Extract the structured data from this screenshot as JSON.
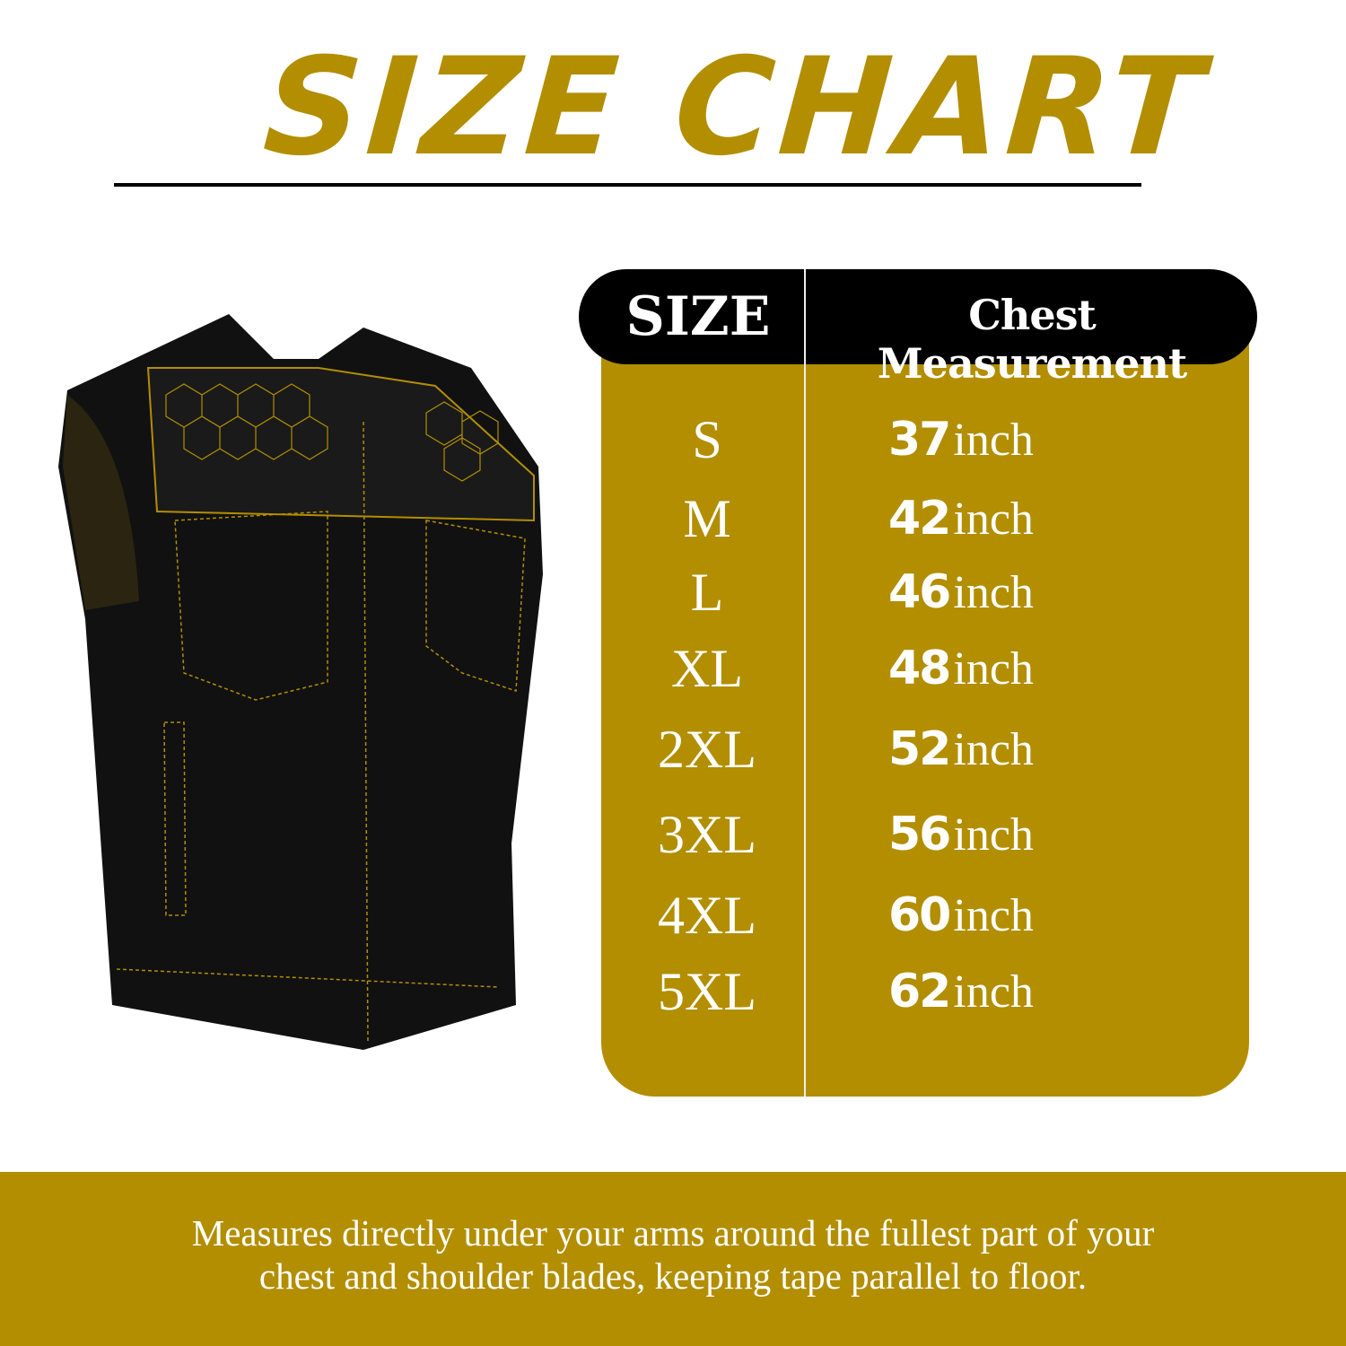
{
  "title": "SIZE CHART",
  "colors": {
    "accent": "#b28e00",
    "header_bg": "#000000",
    "text_light": "#ffffff"
  },
  "table": {
    "headers": {
      "size": "SIZE",
      "chest": "Chest Measurement"
    },
    "rows": [
      {
        "size": "S",
        "value": "37",
        "unit": "inch"
      },
      {
        "size": "M",
        "value": "42",
        "unit": "inch"
      },
      {
        "size": "L",
        "value": "46",
        "unit": "inch"
      },
      {
        "size": "XL",
        "value": "48",
        "unit": "inch"
      },
      {
        "size": "2XL",
        "value": "52",
        "unit": "inch"
      },
      {
        "size": "3XL",
        "value": "56",
        "unit": "inch"
      },
      {
        "size": "4XL",
        "value": "60",
        "unit": "inch"
      },
      {
        "size": "5XL",
        "value": "62",
        "unit": "inch"
      }
    ]
  },
  "product_image": "black-leather-vest-gold-stitching",
  "footer": {
    "line1": "Measures directly under your arms around the fullest part of your",
    "line2": "chest and shoulder blades, keeping tape parallel to floor."
  }
}
